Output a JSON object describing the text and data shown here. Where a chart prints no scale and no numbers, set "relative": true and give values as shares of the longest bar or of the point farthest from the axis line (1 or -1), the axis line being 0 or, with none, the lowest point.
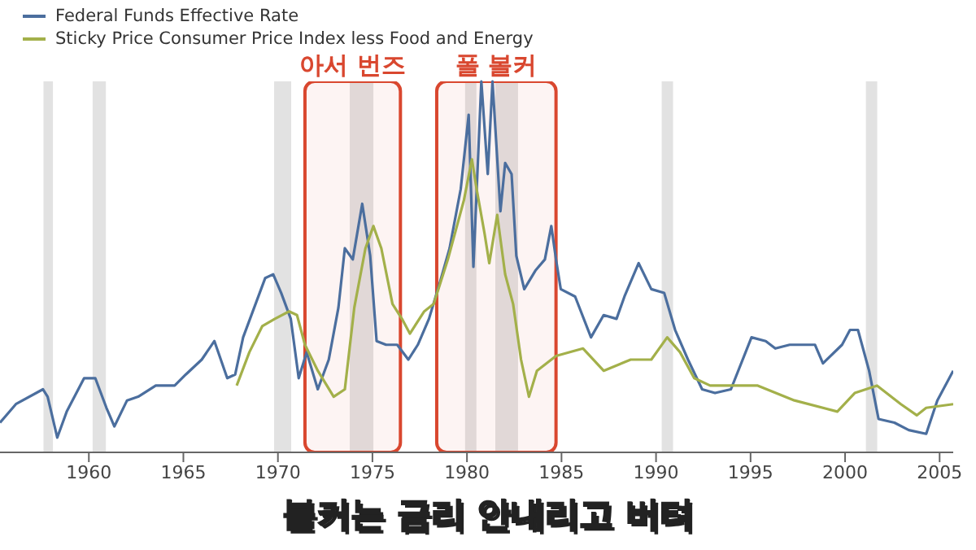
{
  "chart_data": {
    "type": "line",
    "relative": true,
    "legend": "top left",
    "xlim": [
      1955.3,
      2005.72
    ],
    "xticks": [
      1960,
      1965,
      1970,
      1975,
      1980,
      1985,
      1990,
      1995,
      2000,
      2005
    ],
    "annotations": [
      "볼커는 금리 안내리고 버텨"
    ],
    "bands": [
      {
        "axis": "x",
        "from": 1957.6,
        "to": 1958.1,
        "color": "#e2e2e2"
      },
      {
        "axis": "x",
        "from": 1960.2,
        "to": 1960.9,
        "color": "#e2e2e2"
      },
      {
        "axis": "x",
        "from": 1969.8,
        "to": 1970.7,
        "color": "#e2e2e2"
      },
      {
        "axis": "x",
        "from": 1973.8,
        "to": 1975.05,
        "color": "#e2e2e2"
      },
      {
        "axis": "x",
        "from": 1979.9,
        "to": 1980.5,
        "color": "#e2e2e2"
      },
      {
        "axis": "x",
        "from": 1981.5,
        "to": 1982.7,
        "color": "#e2e2e2"
      },
      {
        "axis": "x",
        "from": 1990.3,
        "to": 1990.9,
        "color": "#e2e2e2"
      },
      {
        "axis": "x",
        "from": 2001.1,
        "to": 2001.7,
        "color": "#e2e2e2"
      },
      {
        "axis": "x",
        "from": 1971.43,
        "to": 1976.48,
        "label": "아서 번즈",
        "color": "#d9472f"
      },
      {
        "axis": "x",
        "from": 1978.4,
        "to": 1984.71,
        "label": "폴 볼커",
        "color": "#d9472f"
      }
    ],
    "series": [
      {
        "name": "Federal Funds Effective Rate",
        "color": "#4b6e9e",
        "x": [
          1955.3,
          1956.14,
          1957.57,
          1957.82,
          1958.33,
          1958.83,
          1959.75,
          1960.34,
          1960.93,
          1961.35,
          1962.02,
          1962.61,
          1963.54,
          1964.54,
          1965.13,
          1965.97,
          1966.64,
          1967.32,
          1967.74,
          1968.16,
          1969.33,
          1969.75,
          1970.17,
          1970.68,
          1971.1,
          1971.52,
          1972.11,
          1972.69,
          1973.2,
          1973.54,
          1973.96,
          1974.46,
          1974.88,
          1975.22,
          1975.72,
          1976.31,
          1976.9,
          1977.4,
          1977.99,
          1978.58,
          1979.08,
          1979.67,
          1980.09,
          1980.34,
          1980.76,
          1981.1,
          1981.35,
          1981.77,
          1982.02,
          1982.36,
          1982.61,
          1983.03,
          1983.62,
          1984.12,
          1984.46,
          1984.71,
          1984.96,
          1985.72,
          1986.56,
          1987.23,
          1987.91,
          1988.33,
          1989.08,
          1989.75,
          1990.43,
          1991.01,
          1991.69,
          1992.44,
          1993.12,
          1993.96,
          1995.05,
          1995.8,
          1996.31,
          1997.07,
          1998.41,
          1998.83,
          1999.84,
          2000.26,
          2000.68,
          2001.27,
          2001.77,
          2002.61,
          2003.37,
          2004.29,
          2004.88,
          2005.72
        ],
        "values": [
          0.08,
          0.13,
          0.17,
          0.15,
          0.04,
          0.11,
          0.2,
          0.2,
          0.12,
          0.07,
          0.14,
          0.15,
          0.18,
          0.18,
          0.21,
          0.25,
          0.3,
          0.2,
          0.21,
          0.31,
          0.47,
          0.48,
          0.43,
          0.36,
          0.2,
          0.27,
          0.17,
          0.25,
          0.39,
          0.55,
          0.52,
          0.67,
          0.53,
          0.3,
          0.29,
          0.29,
          0.25,
          0.29,
          0.36,
          0.46,
          0.55,
          0.71,
          0.91,
          0.5,
          1.0,
          0.75,
          1.0,
          0.65,
          0.78,
          0.75,
          0.53,
          0.44,
          0.49,
          0.52,
          0.61,
          0.52,
          0.44,
          0.42,
          0.31,
          0.37,
          0.36,
          0.42,
          0.51,
          0.44,
          0.43,
          0.33,
          0.25,
          0.17,
          0.16,
          0.17,
          0.31,
          0.3,
          0.28,
          0.29,
          0.29,
          0.24,
          0.29,
          0.33,
          0.33,
          0.22,
          0.09,
          0.08,
          0.06,
          0.05,
          0.14,
          0.22
        ]
      },
      {
        "name": "Sticky Price Consumer Price Index less Food and Energy",
        "color": "#a3b04a",
        "x": [
          1967.82,
          1968.49,
          1969.17,
          1969.84,
          1970.59,
          1971.01,
          1971.43,
          1972.11,
          1972.95,
          1973.54,
          1974.04,
          1974.63,
          1975.05,
          1975.47,
          1976.06,
          1976.56,
          1976.98,
          1977.74,
          1978.24,
          1978.99,
          1979.84,
          1980.26,
          1980.51,
          1980.93,
          1981.18,
          1981.6,
          1982.02,
          1982.44,
          1982.86,
          1983.28,
          1983.7,
          1984.71,
          1986.14,
          1987.23,
          1988.66,
          1989.75,
          1990.59,
          1991.27,
          1992.02,
          1992.86,
          1993.96,
          1995.38,
          1997.32,
          1999.59,
          2000.51,
          2001.69,
          2002.95,
          2003.79,
          2004.29,
          2005.72
        ],
        "values": [
          0.18,
          0.27,
          0.34,
          0.36,
          0.38,
          0.37,
          0.29,
          0.22,
          0.15,
          0.17,
          0.39,
          0.55,
          0.61,
          0.55,
          0.4,
          0.36,
          0.32,
          0.38,
          0.4,
          0.52,
          0.68,
          0.79,
          0.71,
          0.59,
          0.51,
          0.64,
          0.48,
          0.4,
          0.25,
          0.15,
          0.22,
          0.26,
          0.28,
          0.22,
          0.25,
          0.25,
          0.31,
          0.27,
          0.2,
          0.18,
          0.18,
          0.18,
          0.14,
          0.11,
          0.16,
          0.18,
          0.13,
          0.1,
          0.12,
          0.13
        ]
      }
    ]
  }
}
